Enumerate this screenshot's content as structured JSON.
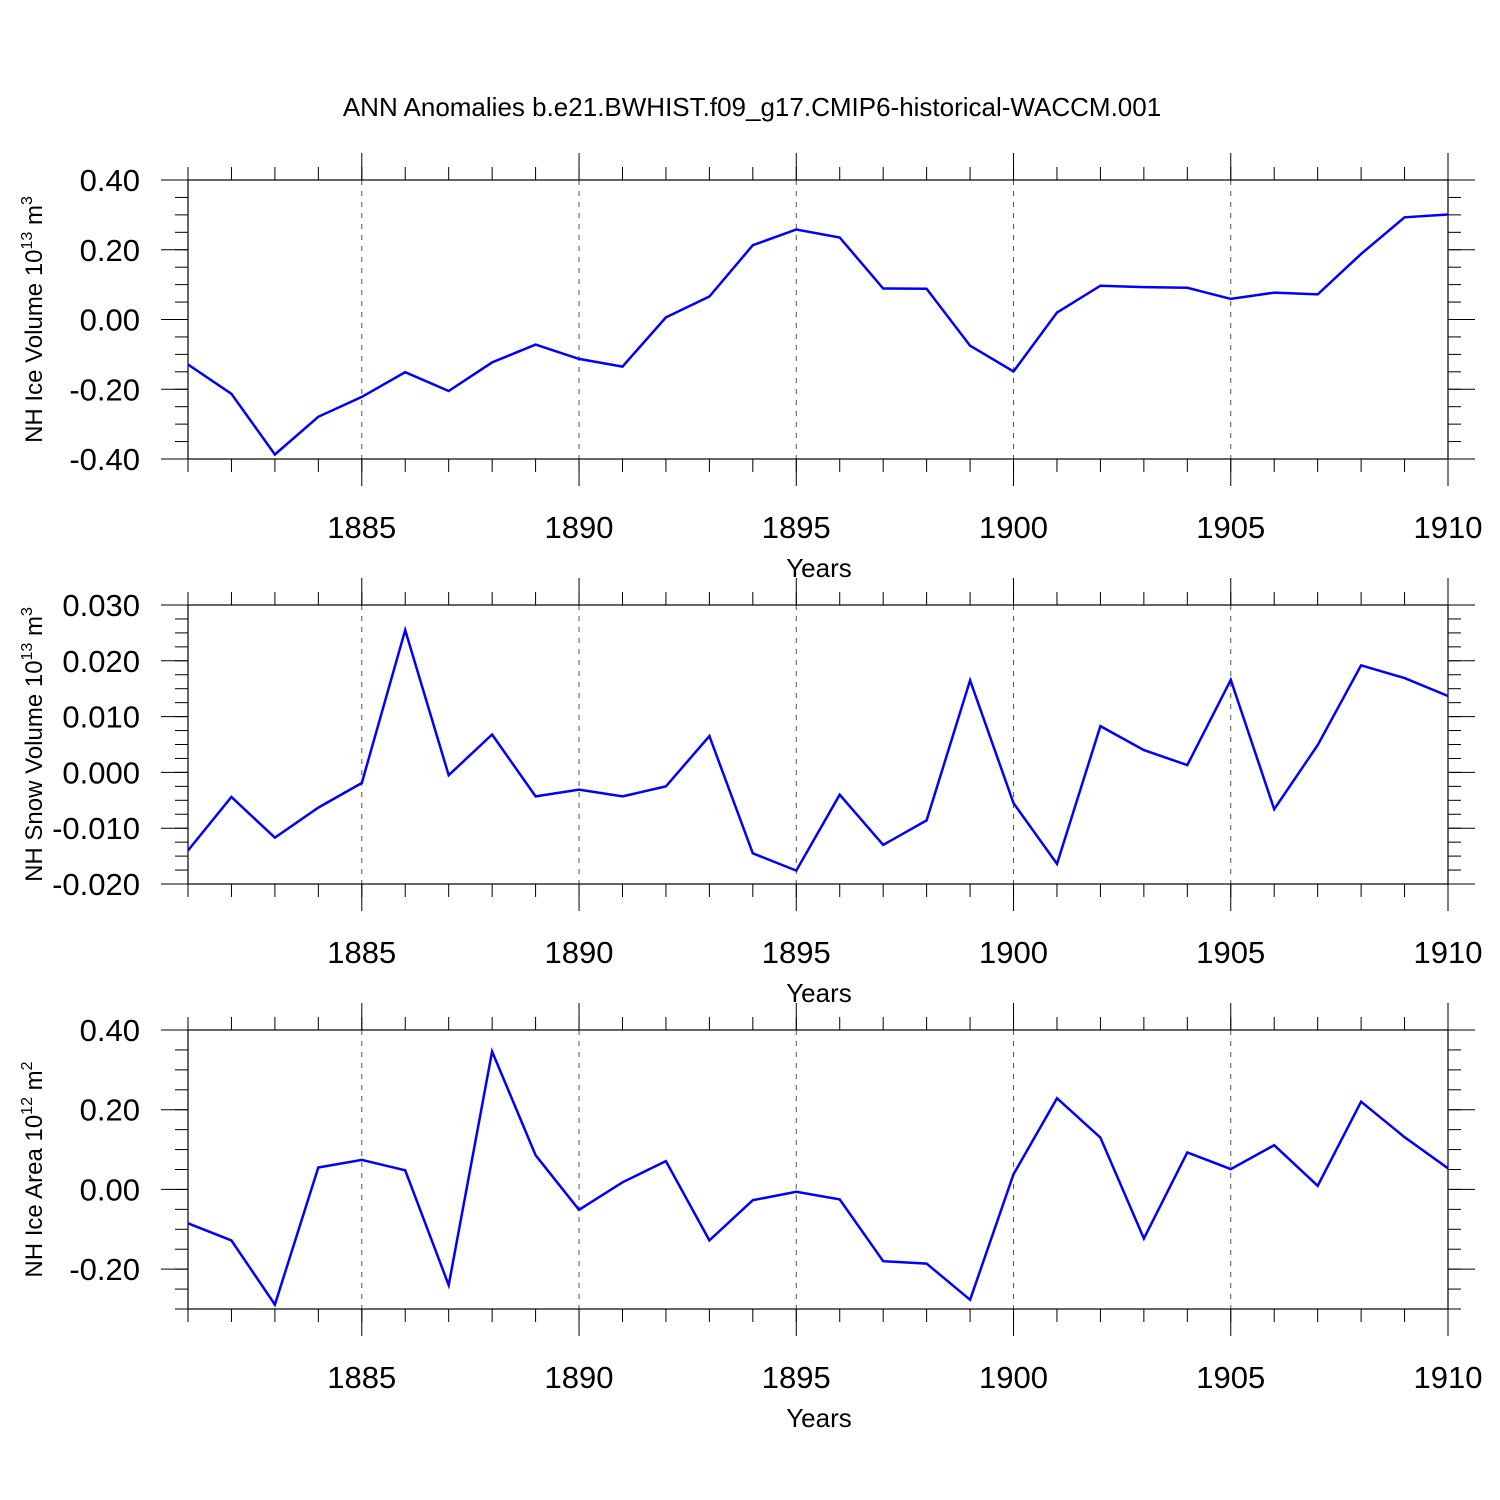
{
  "title": "ANN Anomalies b.e21.BWHIST.f09_g17.CMIP6-historical-WACCM.001",
  "colors": {
    "line": "#0000ff",
    "axis": "#000000",
    "grid": "#555555"
  },
  "chart_data": [
    {
      "type": "line",
      "ylabel": {
        "text": "NH Ice Volume 10",
        "sup": "13",
        "unit": " m",
        "unit_sup": "3"
      },
      "xlabel": "Years",
      "xlim": [
        1881,
        1910
      ],
      "ylim": [
        -0.4,
        0.4
      ],
      "yticks": [
        -0.4,
        -0.2,
        0.0,
        0.2,
        0.4
      ],
      "ytick_labels": [
        "-0.40",
        "-0.20",
        "0.00",
        "0.20",
        "0.40"
      ],
      "xticks": [
        1885,
        1890,
        1895,
        1900,
        1905,
        1910
      ],
      "xtick_labels": [
        "1885",
        "1890",
        "1895",
        "1900",
        "1905",
        "1910"
      ],
      "grid": "vertical dashed at major x ticks",
      "x": [
        1881,
        1882,
        1883,
        1884,
        1885,
        1886,
        1887,
        1888,
        1889,
        1890,
        1891,
        1892,
        1893,
        1894,
        1895,
        1896,
        1897,
        1898,
        1899,
        1900,
        1901,
        1902,
        1903,
        1904,
        1905,
        1906,
        1907,
        1908,
        1909,
        1910
      ],
      "y": [
        -0.129,
        -0.213,
        -0.387,
        -0.279,
        -0.222,
        -0.151,
        -0.205,
        -0.123,
        -0.072,
        -0.113,
        -0.135,
        0.006,
        0.066,
        0.213,
        0.258,
        0.235,
        0.089,
        0.088,
        -0.075,
        -0.149,
        0.02,
        0.097,
        0.093,
        0.091,
        0.059,
        0.077,
        0.072,
        0.188,
        0.293,
        0.301
      ]
    },
    {
      "type": "line",
      "ylabel": {
        "text": "NH Snow Volume 10",
        "sup": "13",
        "unit": " m",
        "unit_sup": "3"
      },
      "xlabel": "Years",
      "xlim": [
        1881,
        1910
      ],
      "ylim": [
        -0.02,
        0.03
      ],
      "yticks": [
        -0.02,
        -0.01,
        0.0,
        0.01,
        0.02,
        0.03
      ],
      "ytick_labels": [
        "-0.020",
        "-0.010",
        "0.000",
        "0.010",
        "0.020",
        "0.030"
      ],
      "xticks": [
        1885,
        1890,
        1895,
        1900,
        1905,
        1910
      ],
      "xtick_labels": [
        "1885",
        "1890",
        "1895",
        "1900",
        "1905",
        "1910"
      ],
      "grid": "vertical dashed at major x ticks",
      "x": [
        1881,
        1882,
        1883,
        1884,
        1885,
        1886,
        1887,
        1888,
        1889,
        1890,
        1891,
        1892,
        1893,
        1894,
        1895,
        1896,
        1897,
        1898,
        1899,
        1900,
        1901,
        1902,
        1903,
        1904,
        1905,
        1906,
        1907,
        1908,
        1909,
        1910
      ],
      "y": [
        -0.014,
        -0.0044,
        -0.0117,
        -0.0063,
        -0.0019,
        0.0255,
        -0.0005,
        0.0068,
        -0.0043,
        -0.0031,
        -0.0043,
        -0.0025,
        0.0065,
        -0.0145,
        -0.0176,
        -0.004,
        -0.013,
        -0.0086,
        0.0165,
        -0.0055,
        -0.0164,
        0.0083,
        0.004,
        0.0013,
        0.0166,
        -0.0066,
        0.0049,
        0.0192,
        0.0169,
        0.0137
      ]
    },
    {
      "type": "line",
      "ylabel": {
        "text": "NH Ice Area 10",
        "sup": "12",
        "unit": " m",
        "unit_sup": "2"
      },
      "xlabel": "Years",
      "xlim": [
        1881,
        1910
      ],
      "ylim": [
        -0.3,
        0.4
      ],
      "yticks": [
        -0.2,
        0.0,
        0.2,
        0.4
      ],
      "ytick_labels": [
        "-0.20",
        "0.00",
        "0.20",
        "0.40"
      ],
      "xticks": [
        1885,
        1890,
        1895,
        1900,
        1905,
        1910
      ],
      "xtick_labels": [
        "1885",
        "1890",
        "1895",
        "1900",
        "1905",
        "1910"
      ],
      "grid": "vertical dashed at major x ticks",
      "x": [
        1881,
        1882,
        1883,
        1884,
        1885,
        1886,
        1887,
        1888,
        1889,
        1890,
        1891,
        1892,
        1893,
        1894,
        1895,
        1896,
        1897,
        1898,
        1899,
        1900,
        1901,
        1902,
        1903,
        1904,
        1905,
        1906,
        1907,
        1908,
        1909,
        1910
      ],
      "y": [
        -0.085,
        -0.128,
        -0.289,
        0.055,
        0.074,
        0.048,
        -0.24,
        0.346,
        0.086,
        -0.051,
        0.018,
        0.071,
        -0.128,
        -0.027,
        -0.006,
        -0.025,
        -0.18,
        -0.186,
        -0.277,
        0.038,
        0.229,
        0.13,
        -0.123,
        0.093,
        0.051,
        0.111,
        0.009,
        0.22,
        0.131,
        0.053
      ]
    }
  ]
}
